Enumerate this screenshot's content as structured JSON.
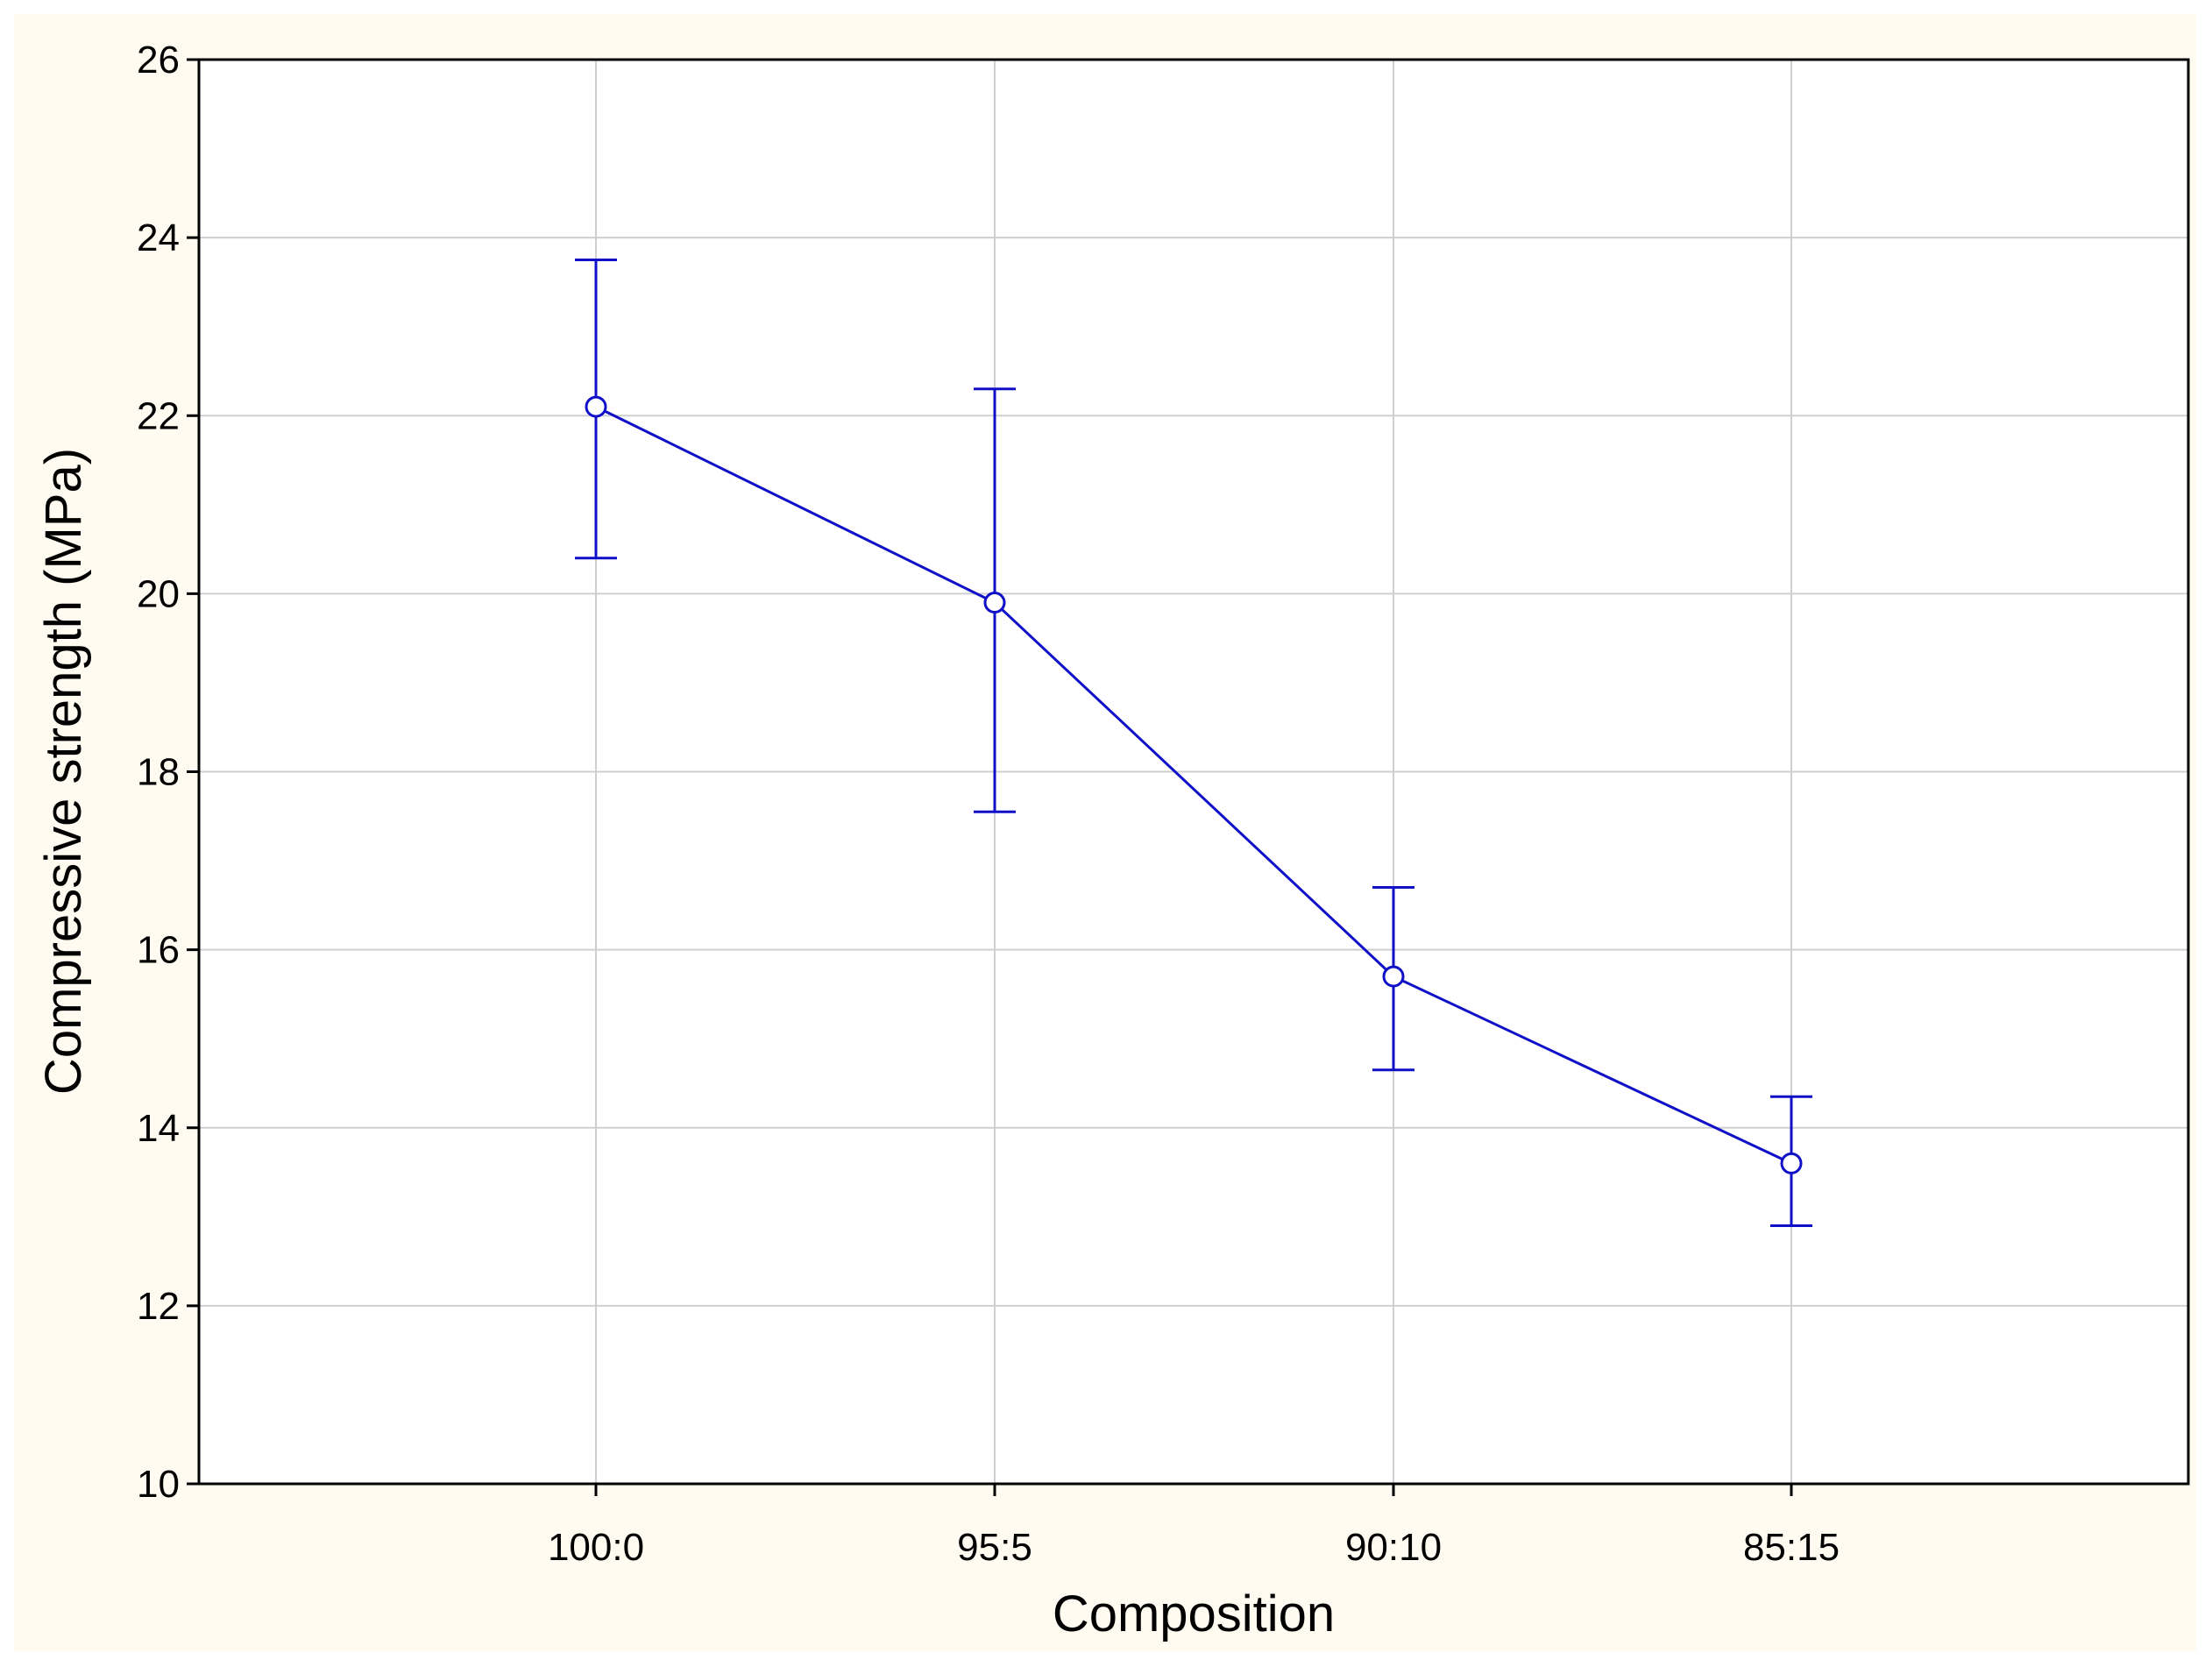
{
  "chart_data": {
    "type": "line",
    "title": "",
    "xlabel": "Composition",
    "ylabel": "Compressive strength (MPa)",
    "categories": [
      "100:0",
      "95:5",
      "90:10",
      "85:15"
    ],
    "series": [
      {
        "values": [
          22.1,
          19.9,
          15.7,
          13.6
        ],
        "error_low": [
          20.4,
          17.55,
          14.65,
          12.9
        ],
        "error_high": [
          23.75,
          22.3,
          16.7,
          14.35
        ]
      }
    ],
    "ylim": [
      10,
      26
    ],
    "yticks": [
      "10",
      "12",
      "14",
      "16",
      "18",
      "20",
      "22",
      "24",
      "26"
    ],
    "grid": true,
    "colors": {
      "series": "#1010c8",
      "grid": "#cfcfcf",
      "background": "#fffbf0",
      "plot_background": "#ffffff"
    }
  }
}
